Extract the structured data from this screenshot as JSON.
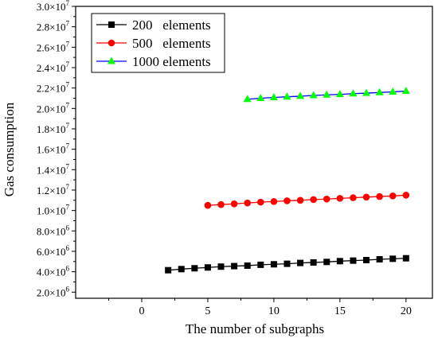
{
  "chart_data": {
    "type": "line",
    "title": "",
    "xlabel": "The number of subgraphs",
    "ylabel": "Gas consumption",
    "xlim": [
      -5,
      22
    ],
    "ylim": [
      1400000,
      30000000
    ],
    "x_ticks": [
      0,
      5,
      10,
      15,
      20
    ],
    "y_ticks": [
      {
        "value": 2000000,
        "mantissa": "2.0",
        "exp": "6"
      },
      {
        "value": 4000000,
        "mantissa": "4.0",
        "exp": "6"
      },
      {
        "value": 6000000,
        "mantissa": "6.0",
        "exp": "6"
      },
      {
        "value": 8000000,
        "mantissa": "8.0",
        "exp": "6"
      },
      {
        "value": 10000000,
        "mantissa": "1.0",
        "exp": "7"
      },
      {
        "value": 12000000,
        "mantissa": "1.2",
        "exp": "7"
      },
      {
        "value": 14000000,
        "mantissa": "1.4",
        "exp": "7"
      },
      {
        "value": 16000000,
        "mantissa": "1.6",
        "exp": "7"
      },
      {
        "value": 18000000,
        "mantissa": "1.8",
        "exp": "7"
      },
      {
        "value": 20000000,
        "mantissa": "2.0",
        "exp": "7"
      },
      {
        "value": 22000000,
        "mantissa": "2.2",
        "exp": "7"
      },
      {
        "value": 24000000,
        "mantissa": "2.4",
        "exp": "7"
      },
      {
        "value": 26000000,
        "mantissa": "2.6",
        "exp": "7"
      },
      {
        "value": 28000000,
        "mantissa": "2.8",
        "exp": "7"
      },
      {
        "value": 30000000,
        "mantissa": "3.0",
        "exp": "7"
      }
    ],
    "grid": false,
    "legend_position": "top-left",
    "series": [
      {
        "name": "200   elements",
        "color": "#000000",
        "marker": "square",
        "x": [
          2,
          3,
          4,
          5,
          6,
          7,
          8,
          9,
          10,
          11,
          12,
          13,
          14,
          15,
          16,
          17,
          18,
          19,
          20
        ],
        "y": [
          4150000,
          4260000,
          4340000,
          4420000,
          4500000,
          4550000,
          4600000,
          4680000,
          4730000,
          4780000,
          4860000,
          4910000,
          4960000,
          5040000,
          5090000,
          5140000,
          5220000,
          5270000,
          5320000
        ]
      },
      {
        "name": "500   elements",
        "color": "#ff0000",
        "marker": "circle",
        "x": [
          5,
          6,
          7,
          8,
          9,
          10,
          11,
          12,
          13,
          14,
          15,
          16,
          17,
          18,
          19,
          20
        ],
        "y": [
          10500000,
          10580000,
          10650000,
          10740000,
          10820000,
          10880000,
          10950000,
          11000000,
          11070000,
          11120000,
          11190000,
          11250000,
          11310000,
          11370000,
          11430000,
          11500000
        ]
      },
      {
        "name": "1000 elements",
        "color": "#0000ff",
        "marker": "triangle",
        "marker_color": "#00ff00",
        "x": [
          8,
          9,
          10,
          11,
          12,
          13,
          14,
          15,
          16,
          17,
          18,
          19,
          20
        ],
        "y": [
          20900000,
          21000000,
          21080000,
          21140000,
          21200000,
          21270000,
          21330000,
          21380000,
          21450000,
          21500000,
          21560000,
          21620000,
          21700000
        ]
      }
    ]
  }
}
